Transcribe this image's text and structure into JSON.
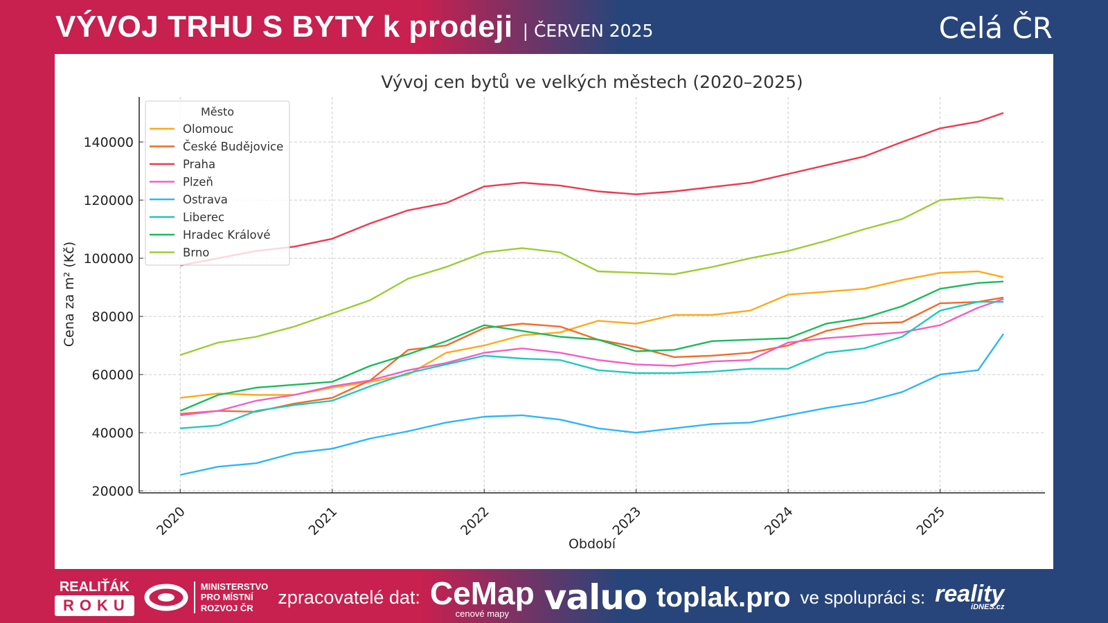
{
  "header": {
    "title": "VÝVOJ TRHU S BYTY k prodeji",
    "subtitle": "| ČERVEN 2025",
    "region": "Celá ČR"
  },
  "footer": {
    "realitak_top": "REALIŤÁK",
    "realitak_bottom": "ROKU",
    "ministry": [
      "MINISTERSTVO",
      "PRO MÍSTNÍ",
      "ROZVOJ ČR"
    ],
    "processors_label": "zpracovatelé dat:",
    "cemap": "CeMap",
    "cemap_sub": "cenové mapy",
    "valuo": "valuo",
    "toplak": "toplak.pro",
    "cooperation_label": "ve spolupráci s:",
    "reality": "reality",
    "reality_sub": "iDNES.cz"
  },
  "chart_data": {
    "type": "line",
    "title": "Vývoj cen bytů ve velkých městech (2020–2025)",
    "xlabel": "Období",
    "ylabel": "Cena za m² (Kč)",
    "legend_title": "Město",
    "legend_position": "top-left",
    "grid": true,
    "xlim": [
      2019.73,
      2025.69
    ],
    "ylim": [
      19300,
      155500
    ],
    "xticks": [
      "2020",
      "2021",
      "2022",
      "2023",
      "2024",
      "2025"
    ],
    "yticks": [
      20000,
      40000,
      60000,
      80000,
      100000,
      120000,
      140000
    ],
    "x": [
      "2020-01",
      "2020-04",
      "2020-07",
      "2020-10",
      "2021-01",
      "2021-04",
      "2021-07",
      "2021-10",
      "2022-01",
      "2022-04",
      "2022-07",
      "2022-10",
      "2023-01",
      "2023-04",
      "2023-07",
      "2023-10",
      "2024-01",
      "2024-04",
      "2024-07",
      "2024-10",
      "2025-01",
      "2025-04",
      "2025-06"
    ],
    "series": [
      {
        "name": "Olomouc",
        "color": "#ffa81a",
        "values": [
          52000,
          53500,
          53000,
          53000,
          55500,
          57500,
          60000,
          67500,
          70000,
          73500,
          74500,
          78500,
          77500,
          80500,
          80500,
          82000,
          87500,
          88500,
          89500,
          92500,
          95000,
          95500,
          93500
        ]
      },
      {
        "name": "České Budějovice",
        "color": "#f26a27",
        "values": [
          46500,
          47500,
          47200,
          50000,
          52000,
          58000,
          68500,
          70000,
          76000,
          77500,
          76500,
          72000,
          69500,
          66000,
          66500,
          67500,
          70000,
          75000,
          77500,
          78000,
          84500,
          85000,
          86500
        ]
      },
      {
        "name": "Praha",
        "color": "#f0384f",
        "values": [
          97500,
          100000,
          102500,
          104000,
          106700,
          112000,
          116500,
          119000,
          124700,
          126000,
          125000,
          123000,
          122000,
          123000,
          124500,
          126000,
          129000,
          132000,
          135000,
          140000,
          144700,
          147000,
          150000
        ]
      },
      {
        "name": "Plzeň",
        "color": "#f25ec6",
        "values": [
          46000,
          47500,
          51000,
          53000,
          56000,
          58000,
          61500,
          64000,
          67500,
          69000,
          67500,
          65000,
          63500,
          63000,
          64500,
          65000,
          71000,
          72500,
          73500,
          74500,
          77000,
          83000,
          86000
        ]
      },
      {
        "name": "Ostrava",
        "color": "#2bb7f5",
        "values": [
          25500,
          28300,
          29500,
          33000,
          34500,
          38000,
          40500,
          43500,
          45500,
          46000,
          44500,
          41500,
          40000,
          41500,
          43000,
          43500,
          46000,
          48500,
          50500,
          54000,
          60000,
          61500,
          74000
        ]
      },
      {
        "name": "Liberec",
        "color": "#1ec9c0",
        "values": [
          41500,
          42500,
          47500,
          49500,
          51000,
          56000,
          60500,
          63500,
          66500,
          65500,
          65000,
          61500,
          60500,
          60500,
          61000,
          62000,
          62000,
          67500,
          69000,
          73000,
          82000,
          85000,
          85000
        ]
      },
      {
        "name": "Hradec Králové",
        "color": "#1abb5c",
        "values": [
          47500,
          53000,
          55500,
          56500,
          57500,
          63000,
          67000,
          71500,
          77000,
          75000,
          73000,
          72000,
          68000,
          68500,
          71500,
          72000,
          72500,
          77500,
          79500,
          83500,
          89500,
          91500,
          92000
        ]
      },
      {
        "name": "Brno",
        "color": "#9ccd30",
        "values": [
          66700,
          71000,
          73000,
          76500,
          81000,
          85600,
          93000,
          97000,
          102000,
          103500,
          102000,
          95500,
          95000,
          94500,
          97000,
          100000,
          102500,
          106000,
          110000,
          113500,
          120000,
          121000,
          120500
        ]
      }
    ]
  }
}
